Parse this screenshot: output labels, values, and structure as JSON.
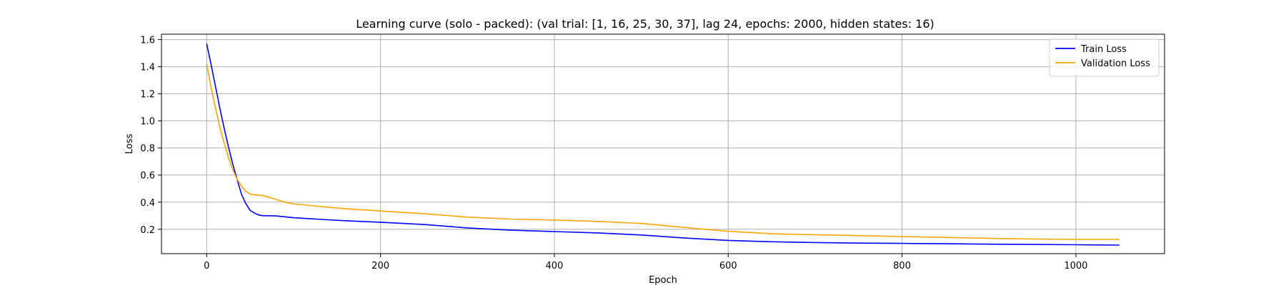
{
  "chart_data": {
    "type": "line",
    "title": "Learning curve (solo - packed): (val trial: [1, 16, 25, 30, 37], lag 24, epochs: 2000, hidden states: 16)",
    "xlabel": "Epoch",
    "ylabel": "Loss",
    "xlim": [
      -52,
      1102
    ],
    "ylim": [
      0.02,
      1.64
    ],
    "xticks": [
      0,
      200,
      400,
      600,
      800,
      1000
    ],
    "yticks": [
      0.2,
      0.4,
      0.6,
      0.8,
      1.0,
      1.2,
      1.4,
      1.6
    ],
    "xtick_labels": [
      "0",
      "200",
      "400",
      "600",
      "800",
      "1000"
    ],
    "ytick_labels": [
      "0.2",
      "0.4",
      "0.6",
      "0.8",
      "1.0",
      "1.2",
      "1.4",
      "1.6"
    ],
    "grid": true,
    "legend_position": "top-right",
    "series": [
      {
        "name": "Train Loss",
        "color": "#0000ff",
        "x": [
          0,
          5,
          10,
          15,
          20,
          25,
          30,
          35,
          40,
          45,
          50,
          55,
          60,
          65,
          70,
          80,
          90,
          100,
          120,
          140,
          160,
          180,
          200,
          250,
          300,
          350,
          400,
          450,
          500,
          550,
          600,
          650,
          700,
          750,
          800,
          850,
          900,
          950,
          1000,
          1050
        ],
        "y": [
          1.57,
          1.42,
          1.26,
          1.1,
          0.95,
          0.81,
          0.68,
          0.57,
          0.46,
          0.39,
          0.34,
          0.32,
          0.305,
          0.3,
          0.3,
          0.298,
          0.292,
          0.285,
          0.277,
          0.27,
          0.263,
          0.257,
          0.252,
          0.235,
          0.21,
          0.193,
          0.183,
          0.173,
          0.158,
          0.135,
          0.118,
          0.108,
          0.102,
          0.098,
          0.096,
          0.093,
          0.09,
          0.088,
          0.086,
          0.083
        ]
      },
      {
        "name": "Validation Loss",
        "color": "#ffa500",
        "x": [
          0,
          5,
          10,
          15,
          20,
          25,
          30,
          35,
          40,
          45,
          50,
          55,
          60,
          65,
          70,
          80,
          90,
          100,
          120,
          140,
          160,
          180,
          200,
          250,
          300,
          350,
          400,
          450,
          500,
          550,
          600,
          650,
          700,
          750,
          800,
          850,
          900,
          950,
          1000,
          1050
        ],
        "y": [
          1.42,
          1.25,
          1.1,
          0.96,
          0.84,
          0.73,
          0.64,
          0.57,
          0.52,
          0.48,
          0.46,
          0.455,
          0.452,
          0.448,
          0.44,
          0.42,
          0.4,
          0.387,
          0.375,
          0.363,
          0.352,
          0.343,
          0.335,
          0.315,
          0.29,
          0.275,
          0.268,
          0.258,
          0.243,
          0.213,
          0.185,
          0.167,
          0.16,
          0.153,
          0.146,
          0.14,
          0.133,
          0.128,
          0.125,
          0.125
        ]
      }
    ]
  }
}
